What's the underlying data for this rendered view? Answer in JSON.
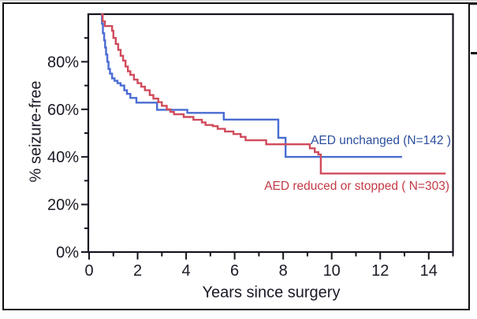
{
  "figure": {
    "kind": "kaplan-meier-survival-figure",
    "background": "#ffffff",
    "frame_color": "#0f0f0f",
    "top_strip_color": "#d9d9d9",
    "axis_color": "#141420",
    "axis_text_color": "#1a1a26"
  },
  "chart_data": {
    "type": "line",
    "subtype": "step-survival",
    "title": "",
    "xlabel": "Years since surgery",
    "ylabel": "% seizure-free",
    "xlim": [
      0,
      15
    ],
    "ylim": [
      0,
      100
    ],
    "grid": false,
    "legend_position": "inside-right",
    "x_axis": {
      "major_ticks": [
        0,
        2,
        4,
        6,
        8,
        10,
        12,
        14
      ],
      "minor_ticks": [
        1,
        3,
        5,
        7,
        9,
        11,
        13,
        15
      ],
      "tick_labels": [
        "0",
        "2",
        "4",
        "6",
        "8",
        "10",
        "12",
        "14"
      ]
    },
    "y_axis": {
      "major_ticks": [
        0,
        20,
        40,
        60,
        80
      ],
      "minor_ticks": [
        10,
        30,
        50,
        70,
        90
      ],
      "tick_labels": [
        "0%",
        "20%",
        "40%",
        "60%",
        "80%"
      ]
    },
    "series": [
      {
        "name": "AED unchanged (N=142 )",
        "n": 142,
        "color": "#4a6cd3",
        "label_color": "#2b4e9e",
        "points": [
          [
            0.5,
            100
          ],
          [
            0.53,
            96
          ],
          [
            0.57,
            92
          ],
          [
            0.62,
            89
          ],
          [
            0.66,
            86
          ],
          [
            0.7,
            83
          ],
          [
            0.75,
            80
          ],
          [
            0.8,
            77
          ],
          [
            0.86,
            75
          ],
          [
            0.95,
            73
          ],
          [
            1.05,
            72
          ],
          [
            1.17,
            71
          ],
          [
            1.3,
            70
          ],
          [
            1.45,
            68
          ],
          [
            1.56,
            66.5
          ],
          [
            1.7,
            64.8
          ],
          [
            1.95,
            62.8
          ],
          [
            2.8,
            59.8
          ],
          [
            4.05,
            58.5
          ],
          [
            5.55,
            55.7
          ],
          [
            7.8,
            48
          ],
          [
            8.1,
            40
          ],
          [
            12.9,
            40
          ]
        ]
      },
      {
        "name": "AED reduced or stopped ( N=303)",
        "n": 303,
        "color": "#d04b5b",
        "label_color": "#c23a46",
        "points": [
          [
            0.5,
            100
          ],
          [
            0.56,
            97
          ],
          [
            0.65,
            95
          ],
          [
            0.95,
            93
          ],
          [
            1.0,
            90
          ],
          [
            1.1,
            87.5
          ],
          [
            1.2,
            85
          ],
          [
            1.3,
            82.5
          ],
          [
            1.4,
            80.5
          ],
          [
            1.5,
            78
          ],
          [
            1.6,
            76
          ],
          [
            1.7,
            74.5
          ],
          [
            1.85,
            72.5
          ],
          [
            2.0,
            71
          ],
          [
            2.15,
            69.5
          ],
          [
            2.3,
            68
          ],
          [
            2.5,
            66
          ],
          [
            2.65,
            64.5
          ],
          [
            2.85,
            63
          ],
          [
            3.0,
            61.5
          ],
          [
            3.2,
            60
          ],
          [
            3.35,
            58.9
          ],
          [
            3.5,
            57.9
          ],
          [
            3.9,
            56.8
          ],
          [
            4.3,
            55.6
          ],
          [
            4.65,
            54.5
          ],
          [
            4.8,
            53.4
          ],
          [
            5.1,
            52.9
          ],
          [
            5.3,
            51.8
          ],
          [
            5.6,
            50.7
          ],
          [
            5.95,
            49.6
          ],
          [
            6.25,
            48.4
          ],
          [
            6.45,
            47
          ],
          [
            7.3,
            45.3
          ],
          [
            9.1,
            43.6
          ],
          [
            9.3,
            42
          ],
          [
            9.45,
            41
          ],
          [
            9.55,
            33
          ],
          [
            14.7,
            33
          ]
        ]
      }
    ]
  }
}
